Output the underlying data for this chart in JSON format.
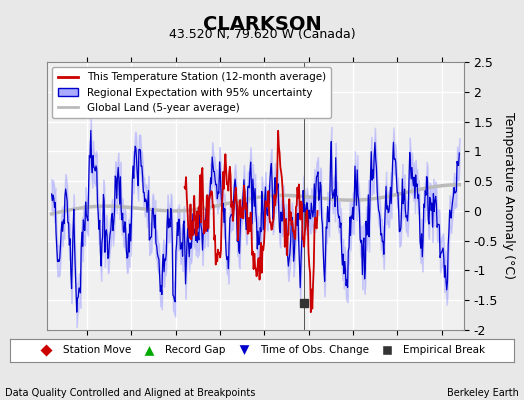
{
  "title": "CLARKSON",
  "subtitle": "43.520 N, 79.620 W (Canada)",
  "ylabel": "Temperature Anomaly (°C)",
  "footer_left": "Data Quality Controlled and Aligned at Breakpoints",
  "footer_right": "Berkeley Earth",
  "xlim": [
    1935.5,
    1982.5
  ],
  "ylim": [
    -2.0,
    2.5
  ],
  "xticks": [
    1940,
    1945,
    1950,
    1955,
    1960,
    1965,
    1970,
    1975,
    1980
  ],
  "yticks": [
    -2.0,
    -1.5,
    -1.0,
    -0.5,
    0.0,
    0.5,
    1.0,
    1.5,
    2.0,
    2.5
  ],
  "bg_color": "#e8e8e8",
  "plot_bg_color": "#f0f0f0",
  "grid_color": "#ffffff",
  "empirical_break_x": 1964.5,
  "empirical_break_y": -1.55,
  "legend_labels": [
    "This Temperature Station (12-month average)",
    "Regional Expectation with 95% uncertainty",
    "Global Land (5-year average)"
  ],
  "legend_colors": [
    "#cc0000",
    "#0000cc",
    "#aaaaaa"
  ],
  "marker_legend": [
    "Station Move",
    "Record Gap",
    "Time of Obs. Change",
    "Empirical Break"
  ],
  "marker_colors": [
    "#cc0000",
    "#00aa00",
    "#0000cc",
    "#333333"
  ],
  "marker_shapes": [
    "D",
    "^",
    "v",
    "s"
  ]
}
